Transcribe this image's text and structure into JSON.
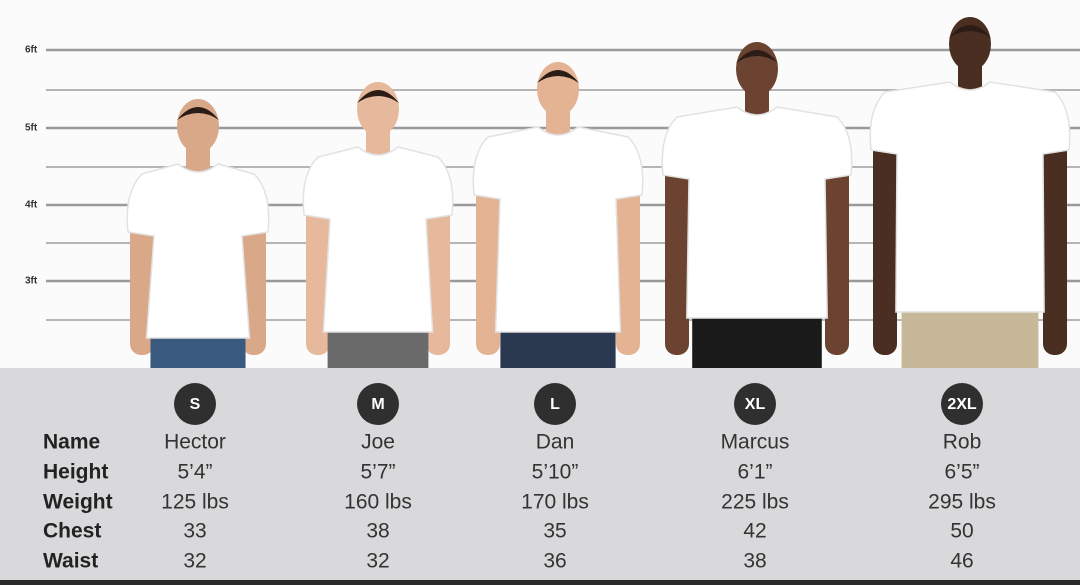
{
  "height_scale": [
    "6ft",
    "5ft",
    "4ft",
    "3ft"
  ],
  "row_labels": [
    "Name",
    "Height",
    "Weight",
    "Chest",
    "Waist"
  ],
  "sizes": [
    {
      "size": "S",
      "name": "Hector",
      "height": "5’4”",
      "weight": "125 lbs",
      "chest": 33,
      "waist": 32
    },
    {
      "size": "M",
      "name": "Joe",
      "height": "5’7”",
      "weight": "160 lbs",
      "chest": 38,
      "waist": 32
    },
    {
      "size": "L",
      "name": "Dan",
      "height": "5’10”",
      "weight": "170 lbs",
      "chest": 35,
      "waist": 36
    },
    {
      "size": "XL",
      "name": "Marcus",
      "height": "6’1”",
      "weight": "225 lbs",
      "chest": 42,
      "waist": 38
    },
    {
      "size": "2XL",
      "name": "Rob",
      "height": "6’5”",
      "weight": "295 lbs",
      "chest": 50,
      "waist": 46
    }
  ]
}
